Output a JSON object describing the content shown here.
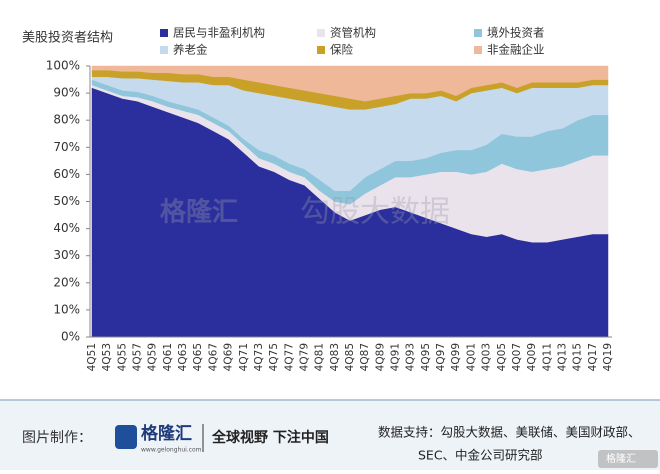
{
  "chart_data": {
    "type": "area",
    "title": "美股投资者结构",
    "categories": [
      "4Q51",
      "4Q53",
      "4Q55",
      "4Q57",
      "4Q59",
      "4Q61",
      "4Q63",
      "4Q65",
      "4Q67",
      "4Q69",
      "4Q71",
      "4Q73",
      "4Q75",
      "4Q77",
      "4Q79",
      "4Q81",
      "4Q83",
      "4Q85",
      "4Q87",
      "4Q89",
      "4Q91",
      "4Q93",
      "4Q95",
      "4Q97",
      "4Q99",
      "4Q01",
      "4Q03",
      "4Q05",
      "4Q07",
      "4Q09",
      "4Q11",
      "4Q13",
      "4Q15",
      "4Q17",
      "4Q19"
    ],
    "series": [
      {
        "name": "居民与非盈利机构",
        "color": "#2b2f9e",
        "values": [
          92,
          90,
          88,
          87,
          85,
          83,
          81,
          79,
          76,
          73,
          68,
          63,
          61,
          58,
          56,
          51,
          46,
          43,
          45,
          47,
          48,
          46,
          44,
          42,
          40,
          38,
          37,
          38,
          36,
          35,
          35,
          36,
          37,
          38,
          38
        ]
      },
      {
        "name": "资管机构",
        "color": "#ebe3ec",
        "values": [
          1,
          1,
          1,
          1.5,
          2,
          2,
          2.5,
          3,
          3,
          3,
          3,
          3,
          3,
          3,
          3,
          3,
          4,
          6,
          8,
          9,
          11,
          13,
          16,
          19,
          21,
          22,
          24,
          26,
          26,
          26,
          27,
          27,
          28,
          29,
          29
        ]
      },
      {
        "name": "境外投资者",
        "color": "#8fc6dc",
        "values": [
          2,
          2,
          2,
          2,
          2,
          2,
          2,
          2,
          2,
          2,
          2,
          3,
          3,
          3,
          3,
          4,
          4,
          5,
          6,
          6,
          6,
          6,
          6,
          7,
          8,
          9,
          10,
          11,
          12,
          13,
          14,
          14,
          15,
          15,
          15
        ]
      },
      {
        "name": "养老金",
        "color": "#c6daee",
        "values": [
          1,
          3,
          4.5,
          5,
          6,
          7.5,
          8.5,
          10,
          12,
          15,
          18,
          21,
          22,
          24,
          25,
          28,
          31,
          30,
          25,
          23,
          21,
          23,
          22,
          21,
          18,
          21,
          20,
          17,
          16,
          18,
          16,
          15,
          12,
          11,
          11
        ]
      },
      {
        "name": "保险",
        "color": "#c9a128",
        "values": [
          2.5,
          2.5,
          2.5,
          2.5,
          2.5,
          3,
          3,
          3,
          3,
          3,
          4,
          4,
          4,
          4,
          4,
          4,
          4,
          4,
          3,
          3,
          3,
          2,
          2,
          2,
          2,
          2,
          2,
          2,
          2,
          2,
          2,
          2,
          2,
          2,
          2
        ]
      },
      {
        "name": "非金融企业",
        "color": "#efb899",
        "values": [
          1.5,
          1.5,
          2,
          2,
          2.5,
          2.5,
          3,
          3,
          4,
          4,
          5,
          6,
          7,
          8,
          9,
          10,
          11,
          12,
          13,
          12,
          11,
          10,
          10,
          9,
          11,
          8,
          7,
          6,
          8,
          6,
          6,
          6,
          6,
          5,
          5
        ]
      }
    ],
    "ylim": [
      0,
      100
    ],
    "yticks": [
      {
        "value": 0,
        "label": "0%"
      },
      {
        "value": 10,
        "label": "10%"
      },
      {
        "value": 20,
        "label": "20%"
      },
      {
        "value": 30,
        "label": "30%"
      },
      {
        "value": 40,
        "label": "40%"
      },
      {
        "value": 50,
        "label": "50%"
      },
      {
        "value": 60,
        "label": "60%"
      },
      {
        "value": 70,
        "label": "70%"
      },
      {
        "value": 80,
        "label": "80%"
      },
      {
        "value": 90,
        "label": "90%"
      },
      {
        "value": 100,
        "label": "100%"
      }
    ],
    "stacked": true,
    "legend": "top"
  },
  "watermark": {
    "logo": "格隆汇",
    "text": "勾股大数据"
  },
  "footer": {
    "made_by": "图片制作：",
    "brand": "格隆汇",
    "brand_url": "www.gelonghui.com",
    "slogan": "全球视野 下注中国",
    "source_line1": "数据支持：勾股大数据、美联储、美国财政部、",
    "source_line2": "SEC、中金公司研究部",
    "badge": "格隆汇"
  }
}
